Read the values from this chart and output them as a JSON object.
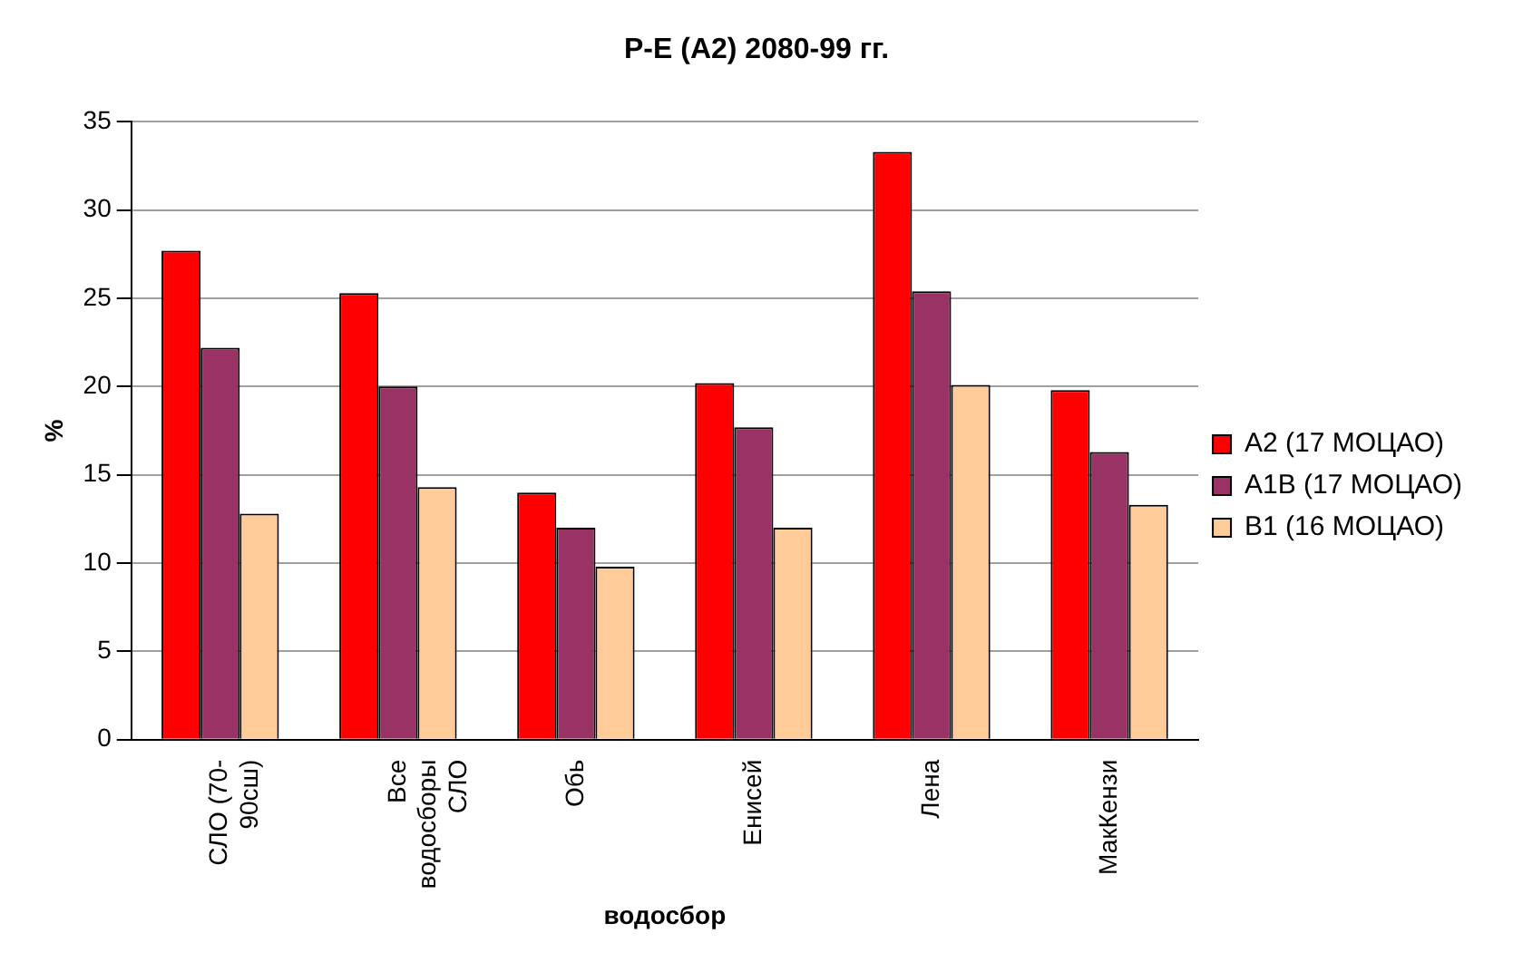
{
  "chart_data": {
    "type": "bar",
    "title": "Р-Е (А2) 2080-99 гг.",
    "xlabel": "водосбор",
    "ylabel": "%",
    "categories": [
      "СЛО (70-\n90сш)",
      "Все\nводосборы\nСЛО",
      "Обь",
      "Енисей",
      "Лена",
      "МакКензи"
    ],
    "series": [
      {
        "name": "A2 (17 МОЦАО)",
        "color": "#ff0000",
        "values": [
          27.7,
          25.3,
          14.0,
          20.2,
          33.3,
          19.8
        ]
      },
      {
        "name": "A1B (17 МОЦАО)",
        "color": "#993366",
        "values": [
          22.2,
          20.0,
          12.0,
          17.7,
          25.4,
          16.3
        ]
      },
      {
        "name": "B1 (16 МОЦАО)",
        "color": "#ffcc99",
        "values": [
          12.8,
          14.3,
          9.8,
          12.0,
          20.1,
          13.3
        ]
      }
    ],
    "ylim": [
      0,
      35
    ],
    "yticks": [
      0,
      5,
      10,
      15,
      20,
      25,
      30,
      35
    ],
    "grid": "y",
    "legend": "right"
  }
}
